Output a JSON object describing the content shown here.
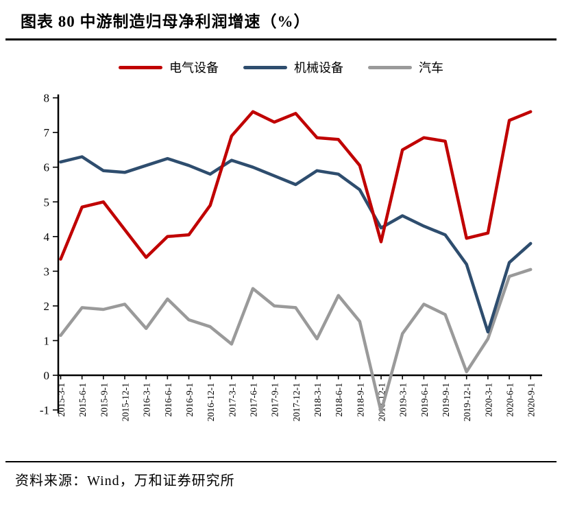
{
  "header": {
    "title": "图表 80  中游制造归母净利润增速（%）"
  },
  "legend": {
    "items": [
      {
        "label": "电气设备",
        "color": "#C00000"
      },
      {
        "label": "机械设备",
        "color": "#2E4D6E"
      },
      {
        "label": "汽车",
        "color": "#9A9A9A"
      }
    ]
  },
  "chart_data": {
    "type": "line",
    "title": "图表 80 中游制造归母净利润增速（%）",
    "xlabel": "",
    "ylabel": "",
    "ylim": [
      -1,
      8
    ],
    "yticks": [
      -1,
      0,
      1,
      2,
      3,
      4,
      5,
      6,
      7,
      8
    ],
    "grid": false,
    "legend_position": "top",
    "categories": [
      "2015-3-1",
      "2015-6-1",
      "2015-9-1",
      "2015-12-1",
      "2016-3-1",
      "2016-6-1",
      "2016-9-1",
      "2016-12-1",
      "2017-3-1",
      "2017-6-1",
      "2017-9-1",
      "2017-12-1",
      "2018-3-1",
      "2018-6-1",
      "2018-9-1",
      "2018-12-1",
      "2019-3-1",
      "2019-6-1",
      "2019-9-1",
      "2019-12-1",
      "2020-3-1",
      "2020-6-1",
      "2020-9-1"
    ],
    "series": [
      {
        "name": "电气设备",
        "color": "#C00000",
        "values": [
          3.35,
          4.85,
          5.0,
          4.2,
          3.4,
          4.0,
          4.05,
          4.9,
          6.9,
          7.6,
          7.3,
          7.55,
          6.85,
          6.8,
          6.05,
          3.85,
          6.5,
          6.85,
          6.75,
          3.95,
          4.1,
          7.35,
          7.6
        ]
      },
      {
        "name": "机械设备",
        "color": "#2E4D6E",
        "values": [
          6.15,
          6.3,
          5.9,
          5.85,
          6.05,
          6.25,
          6.05,
          5.8,
          6.2,
          6.0,
          5.75,
          5.5,
          5.9,
          5.8,
          5.35,
          4.25,
          4.6,
          4.3,
          4.05,
          3.2,
          1.25,
          3.25,
          3.8
        ]
      },
      {
        "name": "汽车",
        "color": "#9A9A9A",
        "values": [
          1.15,
          1.95,
          1.9,
          2.05,
          1.35,
          2.2,
          1.6,
          1.4,
          0.9,
          2.5,
          2.0,
          1.95,
          1.05,
          2.3,
          1.55,
          -1.05,
          1.2,
          2.05,
          1.75,
          0.1,
          1.05,
          2.85,
          3.05
        ]
      }
    ]
  },
  "footer": {
    "source": "资料来源：Wind，万和证券研究所"
  }
}
